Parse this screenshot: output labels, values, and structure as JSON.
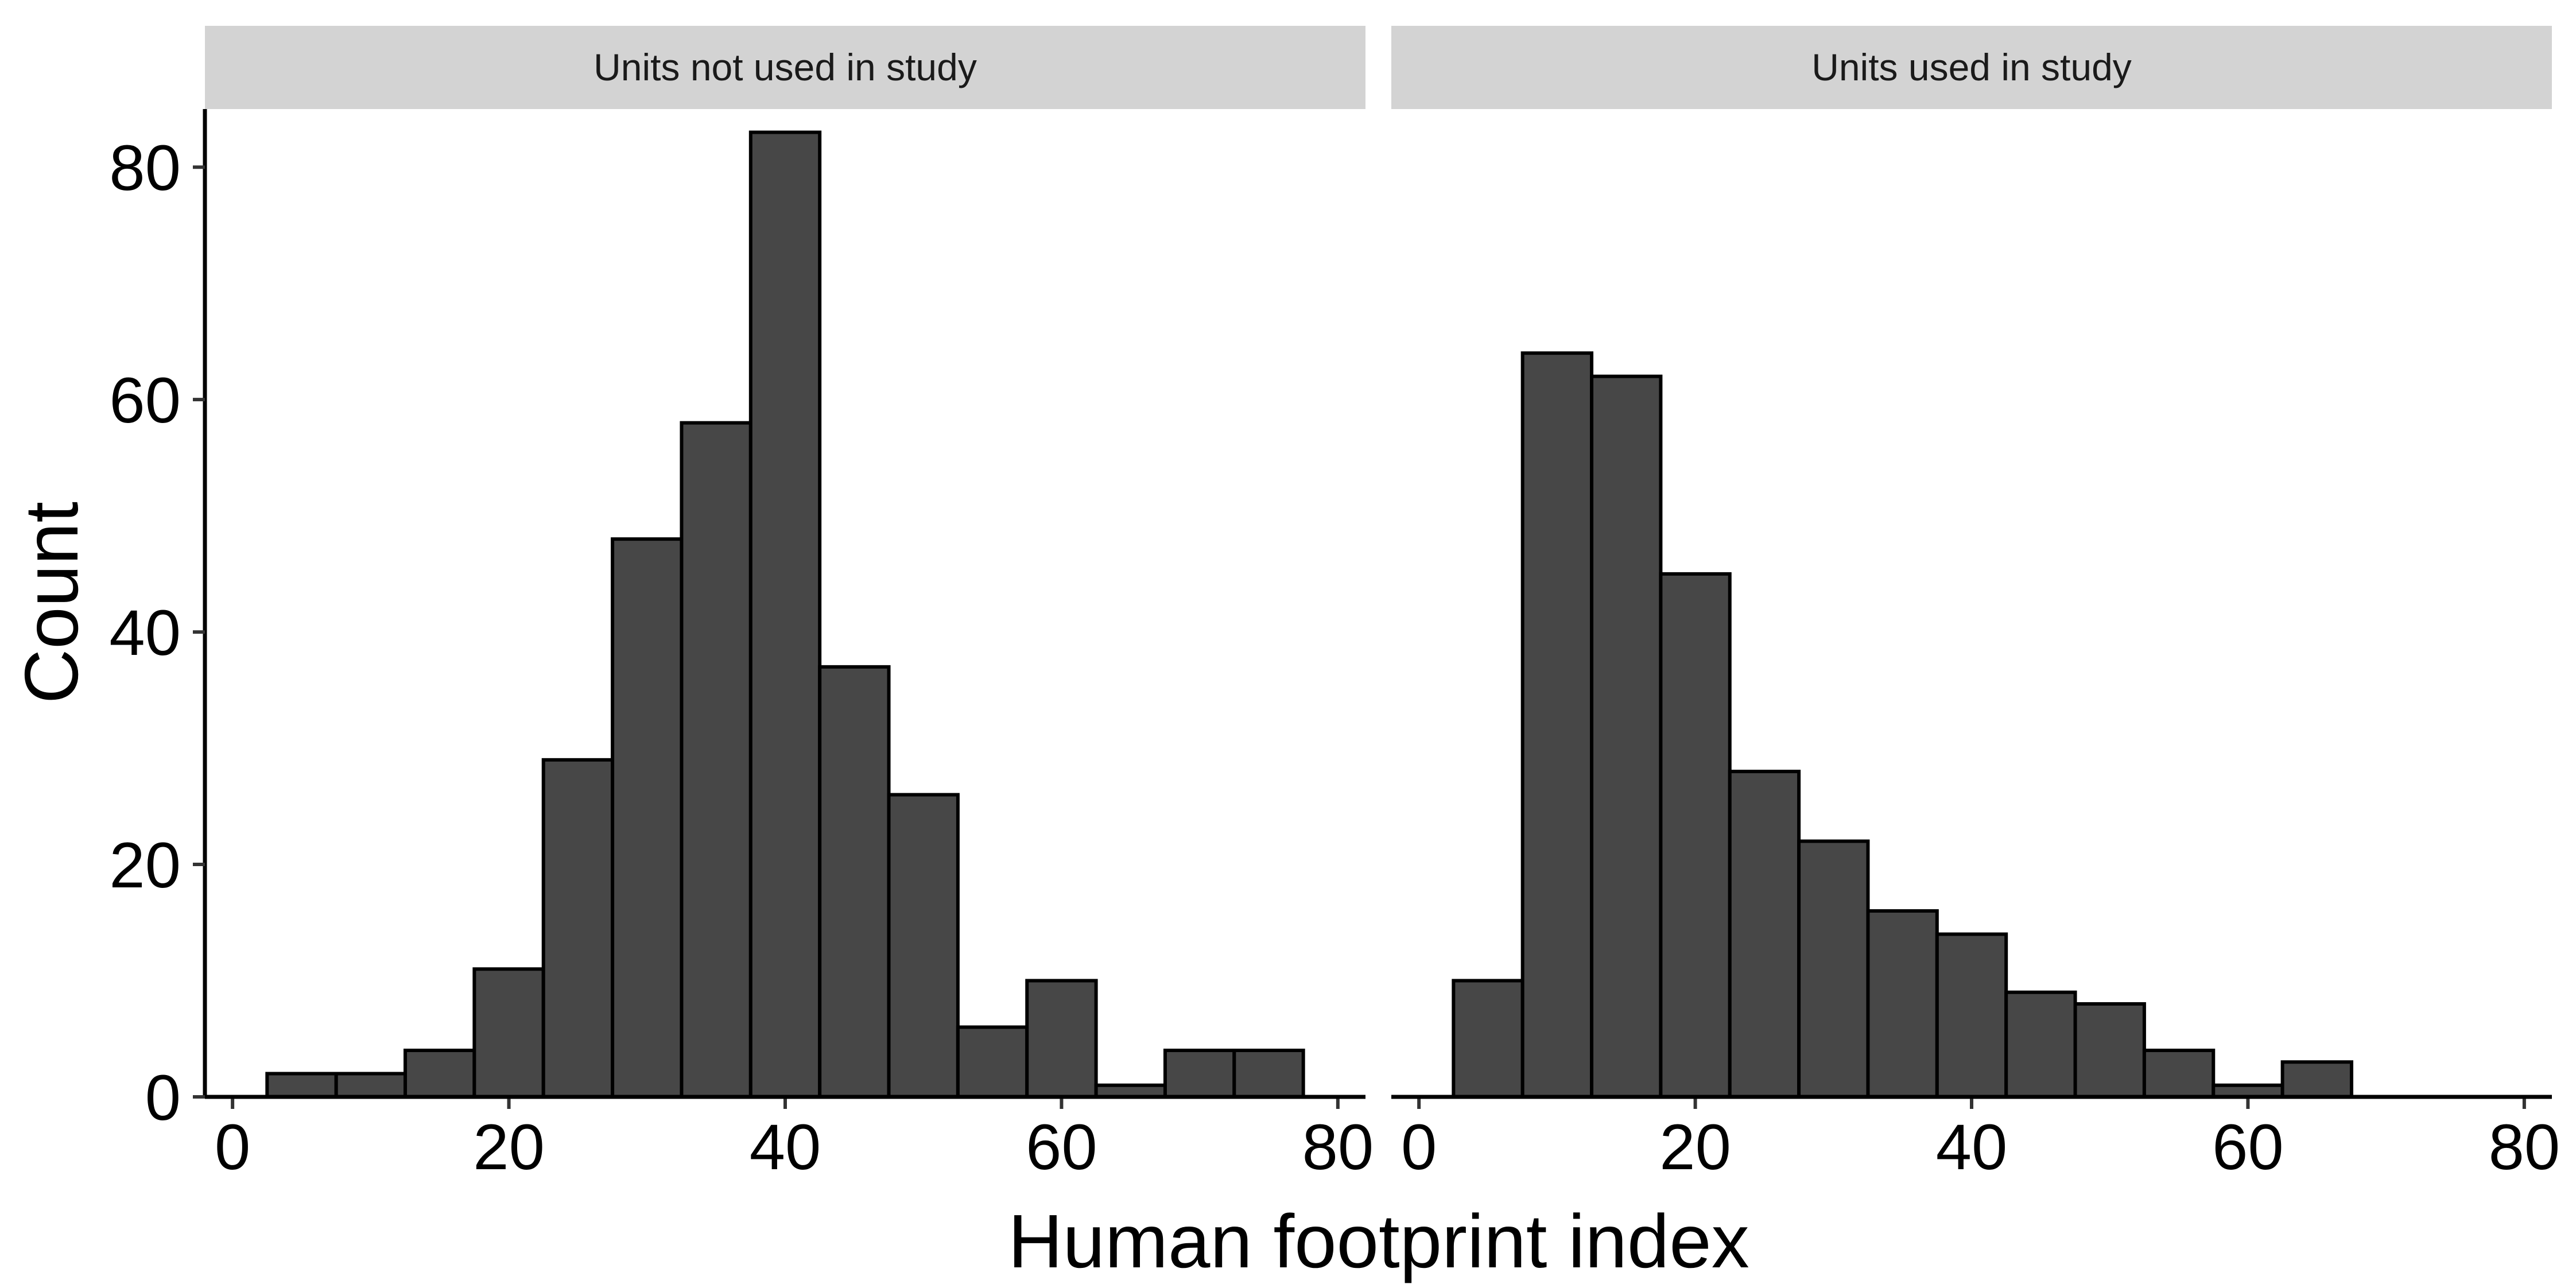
{
  "chart_data": {
    "type": "bar",
    "xlabel": "Human footprint index",
    "ylabel": "Count",
    "bin_width": 5,
    "xlim": [
      -2,
      82
    ],
    "ylim": [
      0,
      85
    ],
    "x_ticks": [
      0,
      20,
      40,
      60,
      80
    ],
    "y_ticks": [
      0,
      20,
      40,
      60,
      80
    ],
    "bar_color": "#474747",
    "bar_edge_color": "#000000",
    "strip_color": "#d3d3d3",
    "grid": false,
    "panels": [
      {
        "name": "Units not used in study",
        "bin_centers": [
          5,
          10,
          15,
          20,
          25,
          30,
          35,
          40,
          45,
          50,
          55,
          60,
          65,
          70,
          75
        ],
        "values": [
          2,
          2,
          4,
          11,
          29,
          48,
          58,
          83,
          37,
          26,
          6,
          10,
          1,
          4,
          4
        ]
      },
      {
        "name": "Units used in study",
        "bin_centers": [
          5,
          10,
          15,
          20,
          25,
          30,
          35,
          40,
          45,
          50,
          55,
          60,
          65,
          70,
          75,
          80
        ],
        "values": [
          10,
          64,
          62,
          45,
          28,
          22,
          16,
          14,
          9,
          8,
          4,
          1,
          3,
          0,
          0,
          0
        ]
      }
    ]
  }
}
